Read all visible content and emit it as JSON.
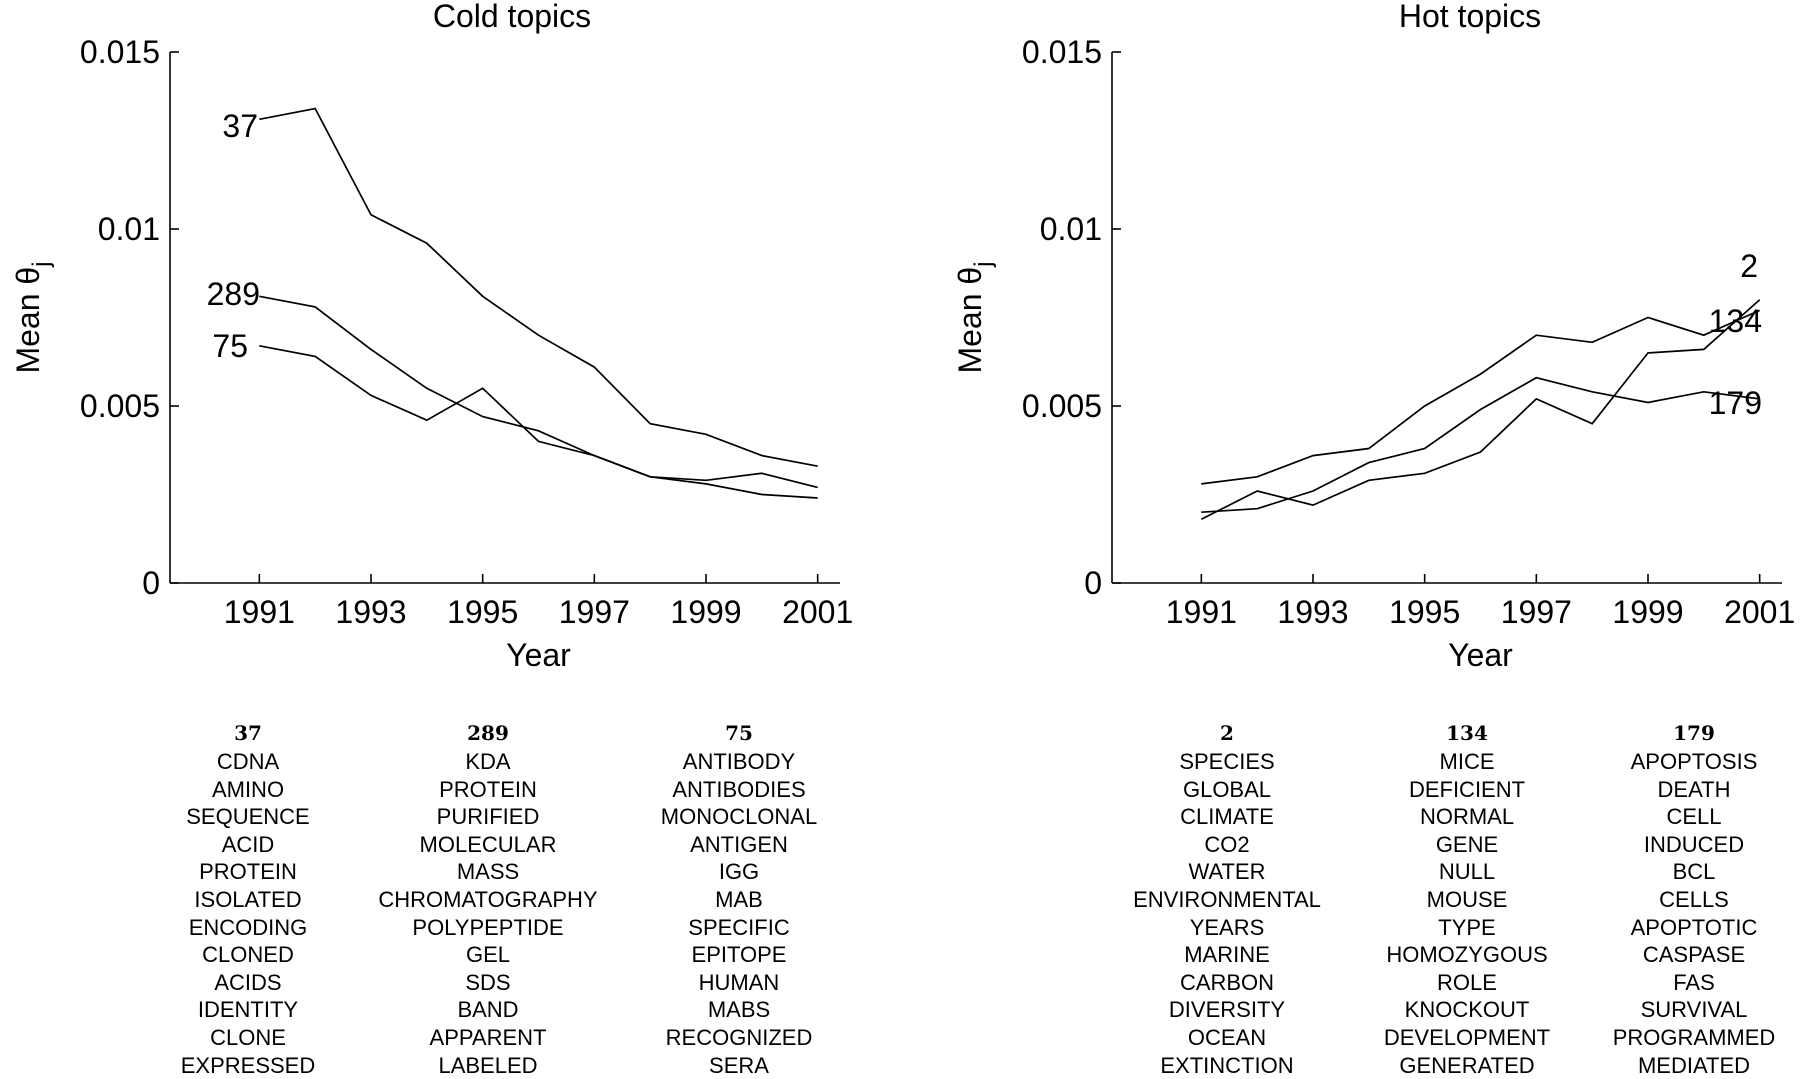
{
  "chart_data": [
    {
      "type": "line",
      "title": "Cold topics",
      "xlabel": "Year",
      "ylabel_main": "Mean θ",
      "ylabel_sub": "j",
      "xlim": [
        1989.4,
        2001.4
      ],
      "ylim": [
        0,
        0.015
      ],
      "x_ticks": [
        "1991",
        "1993",
        "1995",
        "1997",
        "1999",
        "2001"
      ],
      "y_ticks": [
        "0",
        "0.005",
        "0.01",
        "0.015"
      ],
      "x": [
        1991,
        1992,
        1993,
        1994,
        1995,
        1996,
        1997,
        1998,
        1999,
        2000,
        2001
      ],
      "series": [
        {
          "name": "37",
          "values": [
            0.0131,
            0.0134,
            0.0104,
            0.0096,
            0.0081,
            0.007,
            0.0061,
            0.0045,
            0.0042,
            0.0036,
            0.0033
          ]
        },
        {
          "name": "289",
          "values": [
            0.0081,
            0.0078,
            0.0066,
            0.0055,
            0.0047,
            0.0043,
            0.0036,
            0.003,
            0.0029,
            0.0031,
            0.0027
          ]
        },
        {
          "name": "75",
          "values": [
            0.0067,
            0.0064,
            0.0053,
            0.0046,
            0.0055,
            0.004,
            0.0036,
            0.003,
            0.0028,
            0.0025,
            0.0024
          ]
        }
      ]
    },
    {
      "type": "line",
      "title": "Hot topics",
      "xlabel": "Year",
      "ylabel_main": "Mean θ",
      "ylabel_sub": "j",
      "xlim": [
        1989.4,
        2001.4
      ],
      "ylim": [
        0,
        0.015
      ],
      "x_ticks": [
        "1991",
        "1993",
        "1995",
        "1997",
        "1999",
        "2001"
      ],
      "y_ticks": [
        "0",
        "0.005",
        "0.01",
        "0.015"
      ],
      "x": [
        1991,
        1992,
        1993,
        1994,
        1995,
        1996,
        1997,
        1998,
        1999,
        2000,
        2001
      ],
      "series": [
        {
          "name": "2",
          "values": [
            0.0018,
            0.0026,
            0.0022,
            0.0029,
            0.0031,
            0.0037,
            0.0052,
            0.0045,
            0.0065,
            0.0066,
            0.008
          ]
        },
        {
          "name": "134",
          "values": [
            0.002,
            0.0021,
            0.0026,
            0.0034,
            0.0038,
            0.0049,
            0.0058,
            0.0054,
            0.0051,
            0.0054,
            0.0052
          ]
        },
        {
          "name": "179",
          "values": [
            0.0028,
            0.003,
            0.0036,
            0.0038,
            0.005,
            0.0059,
            0.007,
            0.0068,
            0.0075,
            0.007,
            0.0077
          ]
        }
      ]
    }
  ],
  "word_tables": [
    {
      "id": "37",
      "words": [
        "CDNA",
        "AMINO",
        "SEQUENCE",
        "ACID",
        "PROTEIN",
        "ISOLATED",
        "ENCODING",
        "CLONED",
        "ACIDS",
        "IDENTITY",
        "CLONE",
        "EXPRESSED"
      ]
    },
    {
      "id": "289",
      "words": [
        "KDA",
        "PROTEIN",
        "PURIFIED",
        "MOLECULAR",
        "MASS",
        "CHROMATOGRAPHY",
        "POLYPEPTIDE",
        "GEL",
        "SDS",
        "BAND",
        "APPARENT",
        "LABELED"
      ]
    },
    {
      "id": "75",
      "words": [
        "ANTIBODY",
        "ANTIBODIES",
        "MONOCLONAL",
        "ANTIGEN",
        "IGG",
        "MAB",
        "SPECIFIC",
        "EPITOPE",
        "HUMAN",
        "MABS",
        "RECOGNIZED",
        "SERA"
      ]
    },
    {
      "id": "2",
      "words": [
        "SPECIES",
        "GLOBAL",
        "CLIMATE",
        "CO2",
        "WATER",
        "ENVIRONMENTAL",
        "YEARS",
        "MARINE",
        "CARBON",
        "DIVERSITY",
        "OCEAN",
        "EXTINCTION"
      ]
    },
    {
      "id": "134",
      "words": [
        "MICE",
        "DEFICIENT",
        "NORMAL",
        "GENE",
        "NULL",
        "MOUSE",
        "TYPE",
        "HOMOZYGOUS",
        "ROLE",
        "KNOCKOUT",
        "DEVELOPMENT",
        "GENERATED"
      ]
    },
    {
      "id": "179",
      "words": [
        "APOPTOSIS",
        "DEATH",
        "CELL",
        "INDUCED",
        "BCL",
        "CELLS",
        "APOPTOTIC",
        "CASPASE",
        "FAS",
        "SURVIVAL",
        "PROGRAMMED",
        "MEDIATED"
      ]
    }
  ]
}
